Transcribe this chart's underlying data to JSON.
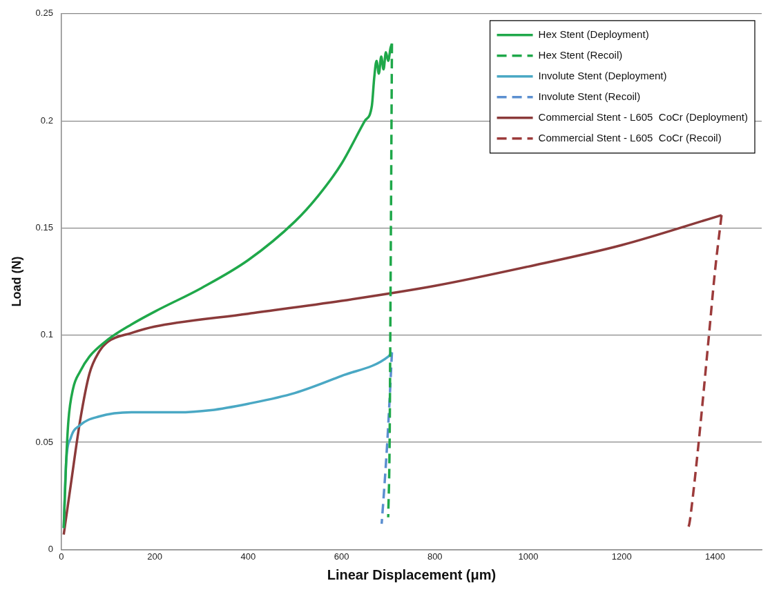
{
  "chart_data": {
    "type": "line",
    "xlabel": "Linear Displacement (μm)",
    "ylabel": "Load (N)",
    "xlim": [
      0,
      1500
    ],
    "xticks": [
      0,
      200,
      400,
      600,
      800,
      1000,
      1200,
      1400
    ],
    "ylim": [
      0,
      0.25
    ],
    "yticks": [
      0,
      0.05,
      0.1,
      0.15,
      0.2,
      0.25
    ],
    "grid": "y",
    "legend": "top right",
    "marker": "none",
    "series": [
      {
        "name": "Hex Stent (Deployment)",
        "color": "#1fa84a",
        "line_style": "solid",
        "x": [
          5,
          10,
          15,
          25,
          40,
          60,
          100,
          150,
          200,
          300,
          400,
          500,
          550,
          600,
          650,
          665,
          670,
          675,
          680,
          685,
          690,
          695,
          700,
          705,
          708
        ],
        "values": [
          0.01,
          0.04,
          0.06,
          0.075,
          0.083,
          0.09,
          0.098,
          0.105,
          0.111,
          0.122,
          0.135,
          0.153,
          0.165,
          0.18,
          0.2,
          0.207,
          0.22,
          0.228,
          0.222,
          0.23,
          0.224,
          0.232,
          0.228,
          0.234,
          0.236
        ]
      },
      {
        "name": "Hex Stent (Recoil)",
        "color": "#1fa84a",
        "line_style": "dashed",
        "x": [
          708,
          705,
          703,
          700
        ],
        "values": [
          0.236,
          0.12,
          0.05,
          0.015
        ]
      },
      {
        "name": "Involute Stent (Deployment)",
        "color": "#4aa8c4",
        "line_style": "solid",
        "x": [
          5,
          10,
          20,
          40,
          80,
          150,
          250,
          320,
          400,
          500,
          600,
          700,
          708
        ],
        "values": [
          0.01,
          0.04,
          0.052,
          0.058,
          0.062,
          0.064,
          0.064,
          0.065,
          0.068,
          0.073,
          0.081,
          0.09,
          0.092
        ]
      },
      {
        "name": "Involute Stent (Recoil)",
        "color": "#5b8fd0",
        "line_style": "dashed",
        "x": [
          708,
          703,
          698,
          692,
          686
        ],
        "values": [
          0.092,
          0.07,
          0.05,
          0.03,
          0.012
        ]
      },
      {
        "name": "Commercial Stent - L605  CoCr (Deployment)",
        "color": "#8b3a3a",
        "line_style": "solid",
        "x": [
          5,
          20,
          40,
          60,
          80,
          100,
          150,
          200,
          400,
          600,
          800,
          1000,
          1200,
          1414
        ],
        "values": [
          0.007,
          0.03,
          0.06,
          0.082,
          0.092,
          0.097,
          0.101,
          0.104,
          0.11,
          0.116,
          0.123,
          0.132,
          0.142,
          0.156
        ]
      },
      {
        "name": "Commercial Stent - L605  CoCr (Recoil)",
        "color": "#9c3b3b",
        "line_style": "dashed",
        "x": [
          1414,
          1400,
          1387,
          1365,
          1350,
          1345,
          1339
        ],
        "values": [
          0.156,
          0.13,
          0.1,
          0.05,
          0.02,
          0.012,
          0.009
        ]
      }
    ]
  }
}
